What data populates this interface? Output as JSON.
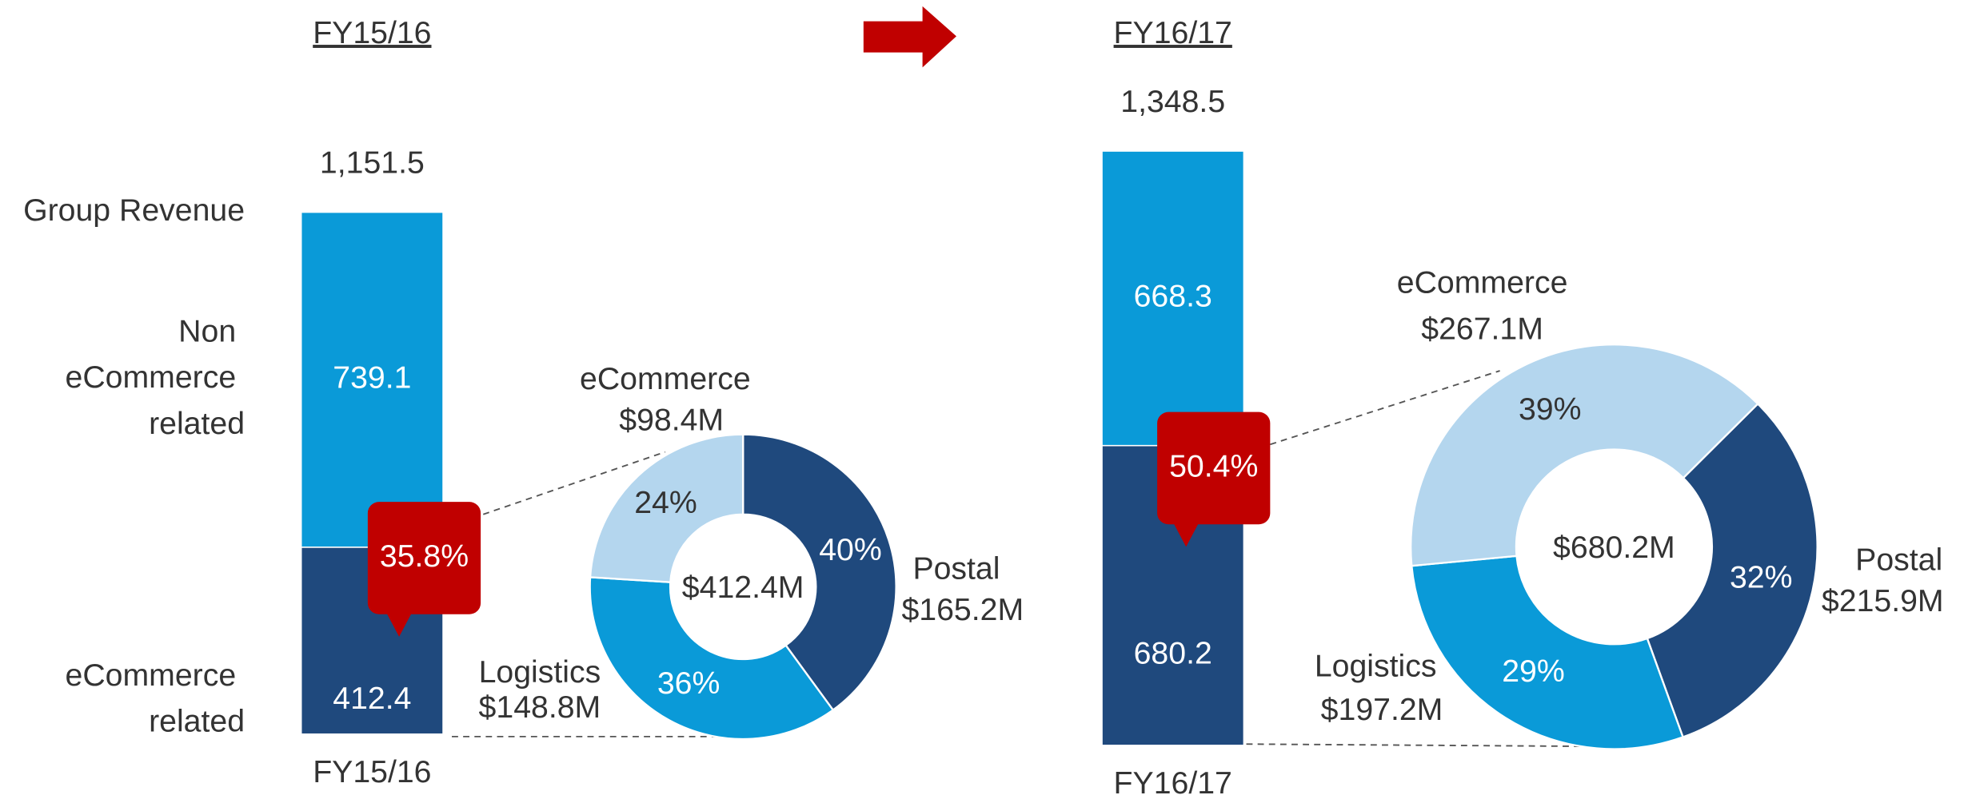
{
  "chart_data": [
    {
      "type": "bar",
      "title": "FY15/16",
      "categories": [
        "FY15/16"
      ],
      "total_name": "Group Revenue",
      "series": [
        {
          "name": "eCommerce related",
          "color": "#1f497d",
          "values": [
            412.4
          ]
        },
        {
          "name": "Non eCommerce related",
          "color": "#0a9ad8",
          "values": [
            739.1
          ]
        }
      ],
      "totals": [
        1151.5
      ],
      "total_labels": [
        "1,151.5"
      ],
      "callout": "35.8%",
      "callout_color": "#c00000"
    },
    {
      "type": "pie",
      "categories": [
        "Postal",
        "Logistics",
        "eCommerce"
      ],
      "values": [
        40,
        36,
        24
      ],
      "value_labels": [
        "40%",
        "36%",
        "24%"
      ],
      "colors": [
        "#1f497d",
        "#0a9ad8",
        "#b4d6ee"
      ],
      "amounts": [
        165.2,
        148.8,
        98.4
      ],
      "amount_labels": [
        "$165.2M",
        "$148.8M",
        "$98.4M"
      ],
      "center_label": "$412.4M"
    },
    {
      "type": "bar",
      "title": "FY16/17",
      "categories": [
        "FY16/17"
      ],
      "series": [
        {
          "name": "eCommerce related",
          "color": "#1f497d",
          "values": [
            680.2
          ]
        },
        {
          "name": "Non eCommerce related",
          "color": "#0a9ad8",
          "values": [
            668.3
          ]
        }
      ],
      "totals": [
        1348.5
      ],
      "total_labels": [
        "1,348.5"
      ],
      "callout": "50.4%",
      "callout_color": "#c00000"
    },
    {
      "type": "pie",
      "categories": [
        "Postal",
        "Logistics",
        "eCommerce"
      ],
      "values": [
        32,
        29,
        39
      ],
      "value_labels": [
        "32%",
        "29%",
        "39%"
      ],
      "colors": [
        "#1f497d",
        "#0a9ad8",
        "#b4d6ee"
      ],
      "amounts": [
        215.9,
        197.2,
        267.1
      ],
      "amount_labels": [
        "$215.9M",
        "$197.2M",
        "$267.1M"
      ],
      "center_label": "$680.2M"
    }
  ]
}
